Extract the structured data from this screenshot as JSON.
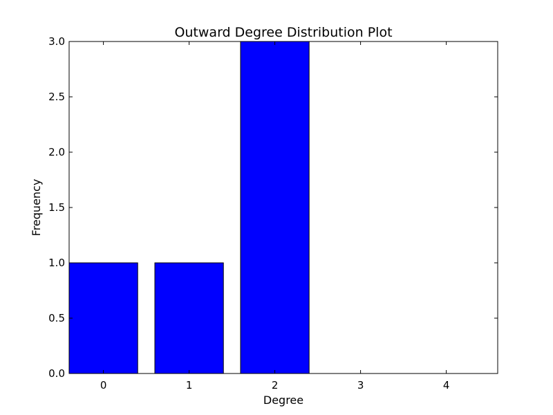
{
  "chart_data": {
    "type": "bar",
    "title": "Outward Degree Distribution Plot",
    "xlabel": "Degree",
    "ylabel": "Frequency",
    "categories": [
      "0",
      "1",
      "2",
      "3",
      "4"
    ],
    "values": [
      1,
      1,
      3,
      0,
      0
    ],
    "x_ticks": [
      0,
      1,
      2,
      3,
      4
    ],
    "x_tick_labels": [
      "0",
      "1",
      "2",
      "3",
      "4"
    ],
    "y_ticks": [
      0,
      0.5,
      1,
      1.5,
      2,
      2.5,
      3
    ],
    "y_tick_labels": [
      "0.0",
      "0.5",
      "1.0",
      "1.5",
      "2.0",
      "2.5",
      "3.0"
    ],
    "xlim": [
      -0.4,
      4.6
    ],
    "ylim": [
      0,
      3
    ],
    "bar_width": 0.8,
    "grid": false,
    "legend": false,
    "colors": {
      "bar": "#0000ff",
      "edge": "#000000",
      "axes": "#000000"
    }
  }
}
